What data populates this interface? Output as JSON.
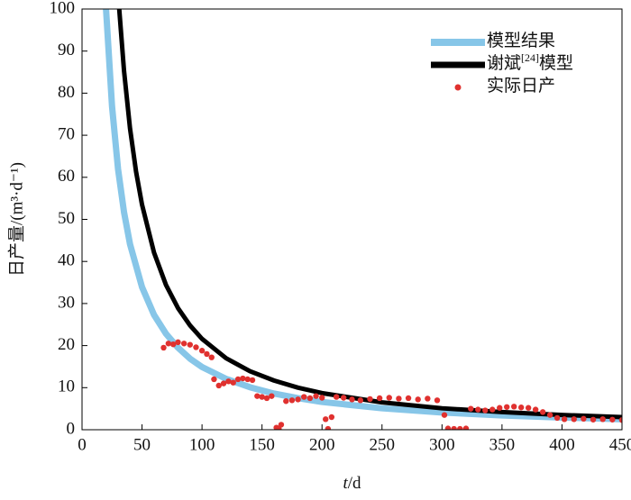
{
  "chart_data": {
    "type": "line",
    "xlabel": "t/d",
    "ylabel": "日产量/(m³·d⁻¹)",
    "xlim": [
      0,
      450
    ],
    "ylim": [
      0,
      100
    ],
    "xticks": [
      0,
      50,
      100,
      150,
      200,
      250,
      300,
      350,
      400,
      450
    ],
    "yticks": [
      0,
      10,
      20,
      30,
      40,
      50,
      60,
      70,
      80,
      90,
      100
    ],
    "legend": "upper right",
    "series": [
      {
        "name": "模型结果",
        "color": "#87c6e8",
        "kind": "line",
        "x": [
          20,
          25,
          30,
          35,
          40,
          50,
          60,
          70,
          80,
          90,
          100,
          120,
          140,
          160,
          180,
          200,
          250,
          300,
          350,
          400,
          450
        ],
        "values": [
          100,
          76.9,
          62.0,
          51.7,
          44.1,
          33.9,
          27.3,
          22.8,
          19.5,
          16.9,
          14.9,
          12.1,
          10.1,
          8.6,
          7.5,
          6.6,
          5.1,
          4.1,
          3.4,
          2.9,
          2.5
        ]
      },
      {
        "name": "谢斌[24]模型",
        "color": "#000000",
        "kind": "line",
        "x": [
          31,
          35,
          40,
          45,
          50,
          60,
          70,
          80,
          90,
          100,
          120,
          140,
          160,
          180,
          200,
          250,
          300,
          350,
          400,
          450
        ],
        "values": [
          100,
          85.3,
          71.6,
          61.4,
          53.5,
          42.1,
          34.4,
          28.9,
          24.8,
          21.6,
          17.0,
          13.9,
          11.7,
          10.0,
          8.7,
          6.5,
          5.1,
          4.2,
          3.5,
          3.0
        ]
      },
      {
        "name": "实际日产",
        "color": "#e0312f",
        "kind": "scatter",
        "x": [
          68,
          72,
          76,
          80,
          85,
          90,
          95,
          100,
          104,
          108,
          110,
          114,
          118,
          122,
          126,
          130,
          134,
          138,
          142,
          146,
          150,
          154,
          158,
          162,
          164,
          166,
          170,
          175,
          180,
          185,
          190,
          195,
          200,
          203,
          205,
          208,
          212,
          218,
          225,
          232,
          240,
          248,
          256,
          264,
          272,
          280,
          288,
          296,
          302,
          305,
          310,
          315,
          320,
          324,
          330,
          336,
          342,
          348,
          354,
          360,
          366,
          372,
          378,
          384,
          390,
          396,
          402,
          410,
          418,
          426,
          434,
          442,
          450
        ],
        "values": [
          19.5,
          20.5,
          20.3,
          20.8,
          20.5,
          20.2,
          19.6,
          18.8,
          18.0,
          17.2,
          12.0,
          10.5,
          11.0,
          11.5,
          11.2,
          12.0,
          12.2,
          12.0,
          11.8,
          8.0,
          7.8,
          7.5,
          8.0,
          0.5,
          0.2,
          1.2,
          6.8,
          7.0,
          7.2,
          7.8,
          7.5,
          8.0,
          7.6,
          2.5,
          0.2,
          3.0,
          7.8,
          7.6,
          7.2,
          7.0,
          7.3,
          7.5,
          7.6,
          7.4,
          7.5,
          7.2,
          7.4,
          7.0,
          3.5,
          0.3,
          0.2,
          0.2,
          0.3,
          5.0,
          4.8,
          4.6,
          4.8,
          5.2,
          5.4,
          5.5,
          5.3,
          5.2,
          4.8,
          4.2,
          3.5,
          2.8,
          2.5,
          2.5,
          2.6,
          2.4,
          2.5,
          2.4,
          2.3
        ]
      }
    ]
  }
}
